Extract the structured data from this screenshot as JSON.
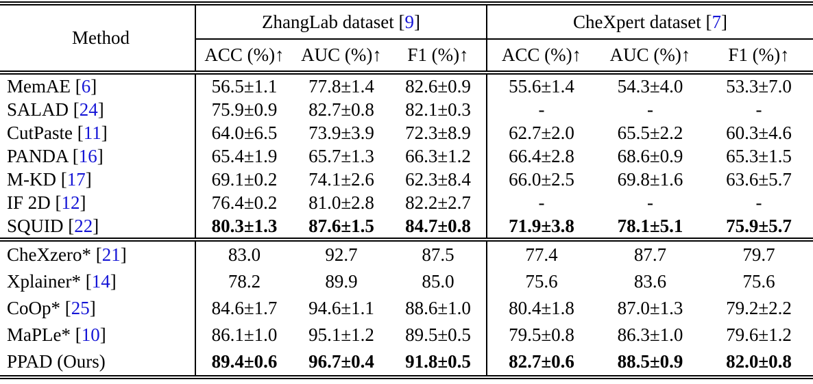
{
  "colors": {
    "citation_blue": "#1515d6",
    "text": "#000000",
    "background": "#ffffff"
  },
  "table": {
    "method_header": "Method",
    "cite_open": " [",
    "cite_close": "]",
    "group_headers": [
      {
        "label": "ZhangLab dataset",
        "citation": "9"
      },
      {
        "label": "CheXpert dataset",
        "citation": "7"
      }
    ],
    "metric_headers": [
      "ACC (%)↑",
      "AUC (%)↑",
      "F1 (%)↑",
      "ACC (%)↑",
      "AUC (%)↑",
      "F1 (%)↑"
    ],
    "sections": [
      {
        "rows": [
          {
            "method": "MemAE",
            "citation": "6",
            "bold_values": false,
            "values": [
              "56.5±1.1",
              "77.8±1.4",
              "82.6±0.9",
              "55.6±1.4",
              "54.3±4.0",
              "53.3±7.0"
            ]
          },
          {
            "method": "SALAD",
            "citation": "24",
            "bold_values": false,
            "values": [
              "75.9±0.9",
              "82.7±0.8",
              "82.1±0.3",
              "-",
              "-",
              "-"
            ]
          },
          {
            "method": "CutPaste",
            "citation": "11",
            "bold_values": false,
            "values": [
              "64.0±6.5",
              "73.9±3.9",
              "72.3±8.9",
              "62.7±2.0",
              "65.5±2.2",
              "60.3±4.6"
            ]
          },
          {
            "method": "PANDA",
            "citation": "16",
            "bold_values": false,
            "values": [
              "65.4±1.9",
              "65.7±1.3",
              "66.3±1.2",
              "66.4±2.8",
              "68.6±0.9",
              "65.3±1.5"
            ]
          },
          {
            "method": "M-KD",
            "citation": "17",
            "bold_values": false,
            "values": [
              "69.1±0.2",
              "74.1±2.6",
              "62.3±8.4",
              "66.0±2.5",
              "69.8±1.6",
              "63.6±5.7"
            ]
          },
          {
            "method": "IF 2D",
            "citation": "12",
            "bold_values": false,
            "values": [
              "76.4±0.2",
              "81.0±2.8",
              "82.2±2.7",
              "-",
              "-",
              "-"
            ]
          },
          {
            "method": "SQUID",
            "citation": "22",
            "bold_values": true,
            "values": [
              "80.3±1.3",
              "87.6±1.5",
              "84.7±0.8",
              "71.9±3.8",
              "78.1±5.1",
              "75.9±5.7"
            ]
          }
        ]
      },
      {
        "rows": [
          {
            "method": "CheXzero*",
            "citation": "21",
            "bold_values": false,
            "values": [
              "83.0",
              "92.7",
              "87.5",
              "77.4",
              "87.7",
              "79.7"
            ]
          },
          {
            "method": "Xplainer*",
            "citation": "14",
            "bold_values": false,
            "values": [
              "78.2",
              "89.9",
              "85.0",
              "75.6",
              "83.6",
              "75.6"
            ]
          },
          {
            "method": "CoOp*",
            "citation": "25",
            "bold_values": false,
            "values": [
              "84.6±1.7",
              "94.6±1.1",
              "88.6±1.0",
              "80.4±1.8",
              "87.0±1.3",
              "79.2±2.2"
            ]
          },
          {
            "method": "MaPLe*",
            "citation": "10",
            "bold_values": false,
            "values": [
              "86.1±1.0",
              "95.1±1.2",
              "89.5±0.5",
              "79.5±0.8",
              "86.3±1.0",
              "79.6±1.2"
            ]
          },
          {
            "method": "PPAD (Ours)",
            "citation": null,
            "bold_values": true,
            "values": [
              "89.4±0.6",
              "96.7±0.4",
              "91.8±0.5",
              "82.7±0.6",
              "88.5±0.9",
              "82.0±0.8"
            ]
          }
        ]
      }
    ]
  }
}
